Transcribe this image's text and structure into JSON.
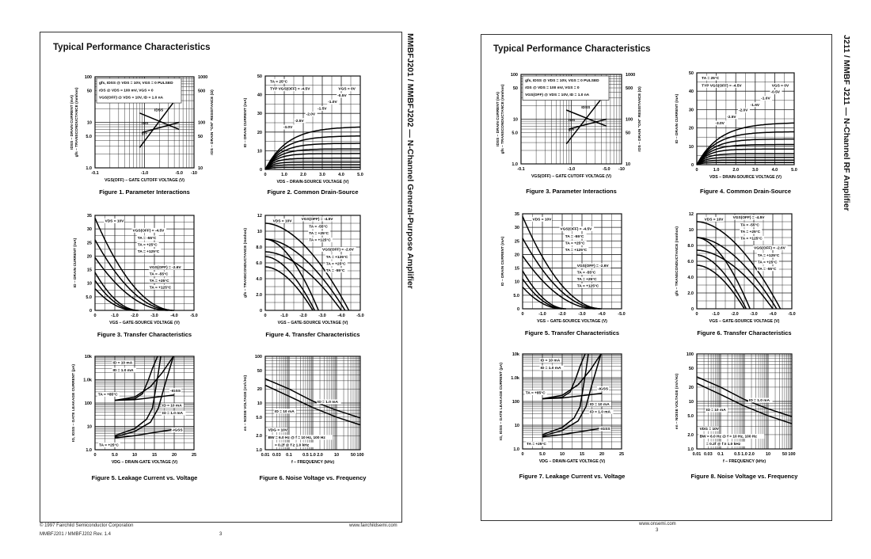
{
  "pages": [
    {
      "heading": "Typical Performance Characteristics",
      "side_title": "MMBFJ201 / MMBFJ202 — N-Channel General-Purpose Amplifier",
      "captions": [
        "Figure 1. Parameter Interactions",
        "Figure 2. Common Drain-Source",
        "Figure 3. Transfer Characteristics",
        "Figure 4. Transfer Characteristics",
        "Figure 5. Leakage Current vs. Voltage",
        "Figure 6. Noise Voltage vs. Frequency"
      ],
      "footer": {
        "copyright": "© 1997 Fairchild Semiconductor Corporation",
        "website": "www.fairchildsemi.com",
        "revision": "MMBFJ201 / MMBFJ202 Rev. 1.4",
        "page_number": "3"
      }
    },
    {
      "heading": "Typical Performance Characteristics",
      "side_title": "J211 / MMBF J211 — N-Channel RF Amplifier",
      "captions": [
        "Figure 3. Parameter Interactions",
        "Figure 4. Common Drain-Source",
        "Figure 5. Transfer Characteristics",
        "Figure 6. Transfer Characteristics",
        "Figure 7. Leakage Current vs. Voltage",
        "Figure 8. Noise Voltage vs. Frequency"
      ],
      "footer": {
        "website": "www.onsemi.com",
        "page_number": "3"
      }
    }
  ],
  "figures": [
    {
      "type": "line",
      "xscale": "log",
      "yscale": "log",
      "xlim": [
        0.1,
        10
      ],
      "ylim": [
        1,
        100
      ],
      "y2lim": [
        10,
        1000
      ],
      "xticks": [
        {
          "v": 0.1,
          "label": "-0.1"
        },
        {
          "v": 1,
          "label": "-1.0"
        },
        {
          "v": 5,
          "label": "-5.0"
        },
        {
          "v": 10,
          "label": "-10"
        }
      ],
      "yticks": [
        {
          "v": 1,
          "label": "1.0"
        },
        {
          "v": 5,
          "label": "5.0"
        },
        {
          "v": 10,
          "label": "10"
        },
        {
          "v": 50,
          "label": "50"
        },
        {
          "v": 100,
          "label": "100"
        }
      ],
      "y2ticks": [
        {
          "v": 10,
          "label": "10"
        },
        {
          "v": 50,
          "label": "50"
        },
        {
          "v": 100,
          "label": "100"
        },
        {
          "v": 500,
          "label": "500"
        },
        {
          "v": 1000,
          "label": "1000"
        }
      ],
      "xlabel": "VGS(OFF) – GATE CUTOFF VOLTAGE (V)",
      "ylabel": [
        "IDSS – DRAIN CURRENT (mA)",
        "gfs – TRANSCONDUCTANCE (mmhos)"
      ],
      "y2label": "rDS – DRAIN \"ON\" RESISTANCE (Ω)",
      "series": [
        {
          "name": "IDSS",
          "axis": "y",
          "points": [
            [
              0.8,
              2.8
            ],
            [
              5,
              40
            ]
          ]
        },
        {
          "name": "rDS",
          "axis": "y2",
          "points": [
            [
              0.8,
              160
            ],
            [
              5,
              70
            ]
          ]
        },
        {
          "name": "gfs",
          "axis": "y",
          "points": [
            [
              0.9,
              6
            ],
            [
              5,
              10
            ]
          ]
        }
      ],
      "annotations": [
        "gfs, IDSS @ VDS = 10V, VGS = 0 PULSED",
        "rDS @ VDS = 100 mV, VGS = 0",
        "VGS(OFF) @ VDS = 10V, ID = 1.0 nA",
        "IDSS",
        "rDS",
        "gfs"
      ]
    },
    {
      "type": "line",
      "xscale": "linear",
      "yscale": "linear",
      "xlim": [
        0,
        5
      ],
      "ylim": [
        0,
        50
      ],
      "grid_step": [
        0.5,
        5
      ],
      "xticks": [
        {
          "v": 0,
          "label": "0"
        },
        {
          "v": 1,
          "label": "1.0"
        },
        {
          "v": 2,
          "label": "2.0"
        },
        {
          "v": 3,
          "label": "3.0"
        },
        {
          "v": 4,
          "label": "4.0"
        },
        {
          "v": 5,
          "label": "5.0"
        }
      ],
      "yticks": [
        {
          "v": 0,
          "label": "0"
        },
        {
          "v": 10,
          "label": "10"
        },
        {
          "v": 20,
          "label": "20"
        },
        {
          "v": 30,
          "label": "30"
        },
        {
          "v": 40,
          "label": "40"
        },
        {
          "v": 50,
          "label": "50"
        }
      ],
      "xlabel": "VDS – DRAIN-SOURCE VOLTAGE (V)",
      "ylabel": [
        "ID – DRAIN CURRENT (mA)"
      ],
      "saturation_currents_mA": [
        23,
        18,
        14,
        11,
        8.5,
        6,
        4,
        2.5,
        1.2
      ],
      "annotations": [
        "TA = 25°C",
        "TYP VGS(OFF) = -4.5V",
        "VGS = 0V",
        "-0.5V",
        "-1.0V",
        "-1.5V",
        "-2.0V",
        "-2.5V",
        "-3.0V"
      ]
    },
    {
      "type": "line",
      "xscale": "linear",
      "yscale": "linear",
      "xlim": [
        0,
        -5
      ],
      "ylim": [
        0,
        35
      ],
      "grid_step": [
        -0.5,
        2.5
      ],
      "xticks": [
        {
          "v": 0,
          "label": "0"
        },
        {
          "v": -1,
          "label": "-1.0"
        },
        {
          "v": -2,
          "label": "-2.0"
        },
        {
          "v": -3,
          "label": "-3.0"
        },
        {
          "v": -4,
          "label": "-4.0"
        },
        {
          "v": -5,
          "label": "-5.0"
        }
      ],
      "yticks": [
        {
          "v": 0,
          "label": "0"
        },
        {
          "v": 5,
          "label": "5.0"
        },
        {
          "v": 10,
          "label": "10"
        },
        {
          "v": 15,
          "label": "15"
        },
        {
          "v": 20,
          "label": "20"
        },
        {
          "v": 25,
          "label": "25"
        },
        {
          "v": 30,
          "label": "30"
        },
        {
          "v": 35,
          "label": "35"
        }
      ],
      "xlabel": "VGS – GATE-SOURCE VOLTAGE (V)",
      "ylabel": [
        "ID – DRAIN CURRENT (mA)"
      ],
      "series": [
        {
          "idss": 34,
          "cutoff": -4.0
        },
        {
          "idss": 26,
          "cutoff": -3.9
        },
        {
          "idss": 19.5,
          "cutoff": -3.7
        },
        {
          "idss": 14,
          "cutoff": -2.2
        },
        {
          "idss": 11,
          "cutoff": -2.1
        },
        {
          "idss": 8,
          "cutoff": -2.0
        }
      ],
      "annotations": [
        "VDS = 10V",
        "VGS(OFF) = -4.5V",
        "TA = -55°C",
        "TA = +25°C",
        "TA = +125°C",
        "VGS(OFF) = -2.6V",
        "TA = -55°C",
        "TA = +25°C",
        "TA = +125°C"
      ]
    },
    {
      "type": "line",
      "xscale": "linear",
      "yscale": "linear",
      "xlim": [
        0,
        -5
      ],
      "ylim": [
        0,
        12
      ],
      "grid_step": [
        -0.5,
        1
      ],
      "xticks": [
        {
          "v": 0,
          "label": "0"
        },
        {
          "v": -1,
          "label": "-1.0"
        },
        {
          "v": -2,
          "label": "-2.0"
        },
        {
          "v": -3,
          "label": "-3.0"
        },
        {
          "v": -4,
          "label": "-4.0"
        },
        {
          "v": -5,
          "label": "-5.0"
        }
      ],
      "yticks": [
        {
          "v": 0,
          "label": "0"
        },
        {
          "v": 2,
          "label": "2.0"
        },
        {
          "v": 4,
          "label": "4.0"
        },
        {
          "v": 6,
          "label": "6.0"
        },
        {
          "v": 8,
          "label": "8.0"
        },
        {
          "v": 10,
          "label": "10"
        },
        {
          "v": 12,
          "label": "12"
        }
      ],
      "xlabel": "VGS – GATE-SOURCE VOLTAGE (V)",
      "ylabel": [
        "gfs – TRANSCONDUCTANCE (mmhos)"
      ],
      "series": [
        {
          "gm0": 11,
          "cutoff": -4.4
        },
        {
          "gm0": 9,
          "cutoff": -4.2
        },
        {
          "gm0": 7.4,
          "cutoff": -4.0
        },
        {
          "gm0": 9,
          "cutoff": -2.8
        },
        {
          "gm0": 6.8,
          "cutoff": -2.6
        },
        {
          "gm0": 5.5,
          "cutoff": -2.5
        }
      ],
      "annotations": [
        "VDS = 10V",
        "VGS(OFF) = -4.5V",
        "TA = -55°C",
        "TA = +25°C",
        "TA = +125°C",
        "VGS(OFF) = -2.6V",
        "TA = +125°C",
        "TA = +25°C",
        "TA = -55°C"
      ]
    },
    {
      "type": "line",
      "xscale": "linear",
      "yscale": "log",
      "xlim": [
        0,
        25
      ],
      "ylim": [
        1,
        10000
      ],
      "grid_step": [
        2.5,
        null
      ],
      "xticks": [
        {
          "v": 0,
          "label": "0"
        },
        {
          "v": 5,
          "label": "5.0"
        },
        {
          "v": 10,
          "label": "10"
        },
        {
          "v": 15,
          "label": "15"
        },
        {
          "v": 20,
          "label": "20"
        },
        {
          "v": 25,
          "label": "25"
        }
      ],
      "yticks": [
        {
          "v": 1,
          "label": "1.0"
        },
        {
          "v": 10,
          "label": "10"
        },
        {
          "v": 100,
          "label": "100"
        },
        {
          "v": 1000,
          "label": "1.0k"
        },
        {
          "v": 10000,
          "label": "10k"
        }
      ],
      "xlabel": "VDG – DRAIN-GATE VOLTAGE (V)",
      "ylabel": [
        "IG, IGSS – GATE LEAKAGE CURRENT (pA)"
      ],
      "series": [
        {
          "points": [
            [
              5,
              130
            ],
            [
              10,
              150
            ],
            [
              12,
              250
            ],
            [
              13.5,
              1000
            ],
            [
              14.5,
              3000
            ],
            [
              15.8,
              10000
            ]
          ]
        },
        {
          "points": [
            [
              5,
              130
            ],
            [
              10,
              180
            ],
            [
              14,
              500
            ],
            [
              17,
              2000
            ],
            [
              19.8,
              10000
            ]
          ]
        },
        {
          "points": [
            [
              5,
              130
            ],
            [
              10,
              140
            ],
            [
              20,
              220
            ]
          ]
        },
        {
          "points": [
            [
              5,
              4
            ],
            [
              10,
              8
            ],
            [
              13,
              20
            ],
            [
              14.5,
              60
            ],
            [
              15.2,
              300
            ],
            [
              16,
              2000
            ],
            [
              16.6,
              10000
            ]
          ]
        },
        {
          "points": [
            [
              5,
              3.5
            ],
            [
              10,
              6
            ],
            [
              14,
              15
            ],
            [
              16,
              60
            ],
            [
              17.5,
              500
            ],
            [
              19.8,
              10000
            ]
          ]
        },
        {
          "points": [
            [
              5,
              3.2
            ],
            [
              10,
              4
            ],
            [
              20,
              7.5
            ]
          ]
        }
      ],
      "annotations": [
        "ID = 10 mA",
        "ID = 1.0 mA",
        "TA = +85°C",
        "-IGSS",
        "ID = 10 mA",
        "ID = 1.0 mA",
        "-IGSS",
        "TA = +25°C"
      ]
    },
    {
      "type": "line",
      "xscale": "log",
      "yscale": "log",
      "xlim": [
        0.01,
        100
      ],
      "ylim": [
        1,
        100
      ],
      "xticks": [
        {
          "v": 0.01,
          "label": "0.01"
        },
        {
          "v": 0.03,
          "label": "0.03"
        },
        {
          "v": 0.1,
          "label": "0.1"
        },
        {
          "v": 0.5,
          "label": "0.5"
        },
        {
          "v": 1,
          "label": "1.0"
        },
        {
          "v": 2,
          "label": "2.0"
        },
        {
          "v": 10,
          "label": "10"
        },
        {
          "v": 50,
          "label": "50"
        },
        {
          "v": 100,
          "label": "100"
        }
      ],
      "yticks": [
        {
          "v": 1,
          "label": "1.0"
        },
        {
          "v": 2,
          "label": "2.0"
        },
        {
          "v": 5,
          "label": "5.0"
        },
        {
          "v": 10,
          "label": "10"
        },
        {
          "v": 20,
          "label": "20"
        },
        {
          "v": 50,
          "label": "50"
        },
        {
          "v": 100,
          "label": "100"
        }
      ],
      "xlabel": "f – FREQUENCY (kHz)",
      "ylabel": [
        "en – NOISE VOLTAGE (nV/√Hz)"
      ],
      "series": [
        {
          "name": "ID = 1.0 mA",
          "points": [
            [
              0.01,
              33
            ],
            [
              0.1,
              20
            ],
            [
              1,
              11
            ],
            [
              10,
              7
            ],
            [
              100,
              4.8
            ]
          ]
        },
        {
          "name": "ID = 10 mA",
          "points": [
            [
              0.01,
              24
            ],
            [
              0.1,
              14
            ],
            [
              1,
              8
            ],
            [
              10,
              5
            ],
            [
              100,
              3.4
            ]
          ]
        }
      ],
      "annotations": [
        "ID = 1.0 mA",
        "ID = 10 mA",
        "VDG = 10V",
        "BW = 6.0 Hz @ f = 10 Hz, 100 Hz",
        "= 0.2f @ f ≥ 1.0 kHz"
      ]
    }
  ]
}
